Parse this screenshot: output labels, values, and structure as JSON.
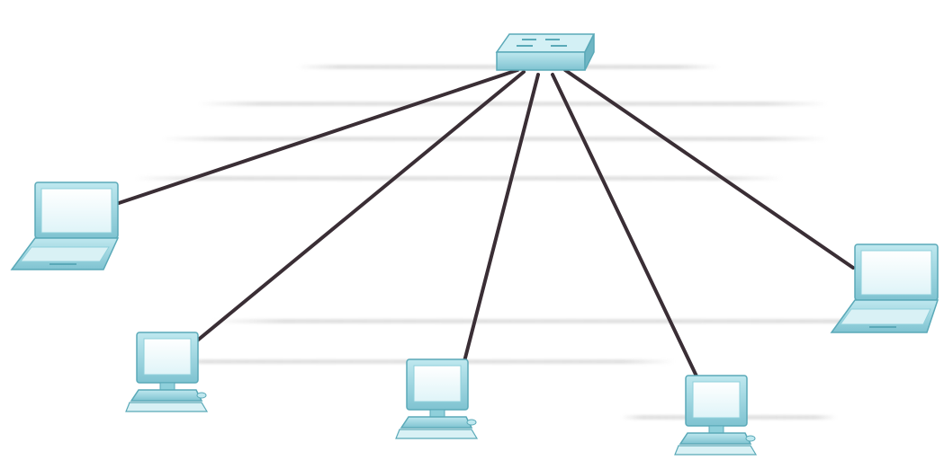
{
  "diagram": {
    "type": "star-network-topology",
    "hub": {
      "name": "switch-icon"
    },
    "nodes": [
      {
        "name": "laptop-icon"
      },
      {
        "name": "desktop-computer-icon"
      },
      {
        "name": "desktop-computer-icon"
      },
      {
        "name": "desktop-computer-icon"
      },
      {
        "name": "laptop-icon"
      }
    ],
    "links": [
      {
        "from": "switch",
        "to": "node-1"
      },
      {
        "from": "switch",
        "to": "node-2"
      },
      {
        "from": "switch",
        "to": "node-3"
      },
      {
        "from": "switch",
        "to": "node-4"
      },
      {
        "from": "switch",
        "to": "node-5"
      }
    ]
  },
  "colors": {
    "cable": "#3a2e35",
    "device_body": "#8fd0db",
    "device_dark": "#5aa9b8",
    "device_light": "#d9f1f5",
    "screen": "#f2fbfd",
    "background": "#ffffff"
  }
}
